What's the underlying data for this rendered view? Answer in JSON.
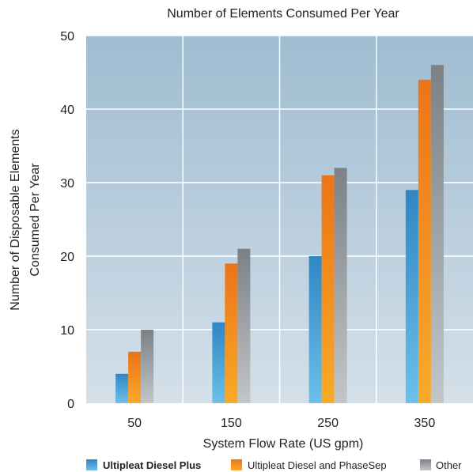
{
  "chart_data": {
    "type": "bar",
    "title": "Number of Elements Consumed Per Year",
    "xlabel": "System Flow Rate (US gpm)",
    "ylabel_lines": [
      "Number of Disposable Elements",
      "Consumed Per Year"
    ],
    "categories": [
      "50",
      "150",
      "250",
      "350"
    ],
    "ylim": [
      0,
      50
    ],
    "yticks": [
      0,
      10,
      20,
      30,
      40,
      50
    ],
    "grid": true,
    "legend_position": "bottom",
    "series": [
      {
        "name": "Ultipleat Diesel Plus",
        "values": [
          4,
          11,
          20,
          29
        ],
        "color": "#3a96d2"
      },
      {
        "name": "Ultipleat Diesel and PhaseSep",
        "values": [
          7,
          19,
          31,
          44
        ],
        "color": "#f0851e"
      },
      {
        "name": "Other",
        "values": [
          10,
          21,
          32,
          46
        ],
        "color": "#8e9296"
      }
    ],
    "background_color": "#a9c3d6"
  }
}
